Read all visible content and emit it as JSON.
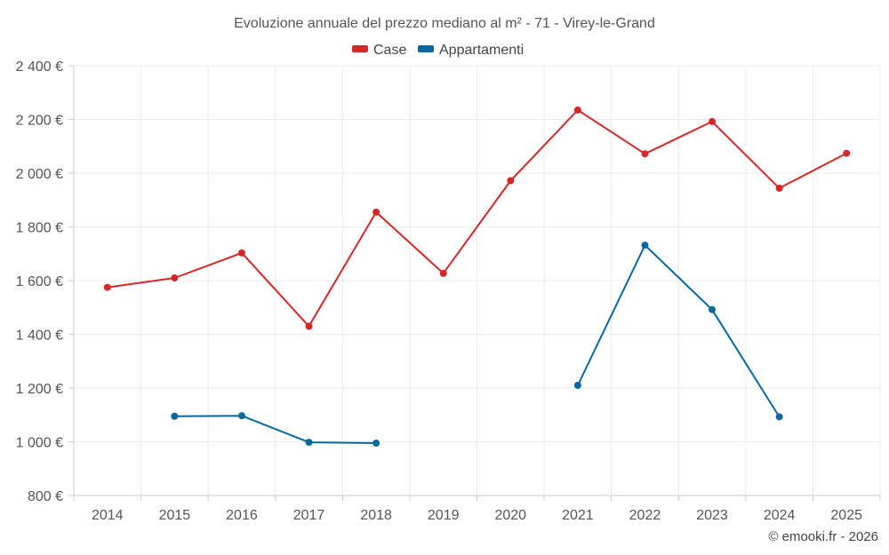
{
  "chart_data": {
    "type": "line",
    "title": "Evoluzione annuale del prezzo mediano al m² - 71 - Virey-le-Grand",
    "categories": [
      "2014",
      "2015",
      "2016",
      "2017",
      "2018",
      "2019",
      "2020",
      "2021",
      "2022",
      "2023",
      "2024",
      "2025"
    ],
    "ylim": [
      800,
      2400
    ],
    "yticks": [
      800,
      1000,
      1200,
      1400,
      1600,
      1800,
      2000,
      2200,
      2400
    ],
    "ytick_labels": [
      "800 €",
      "1 000 €",
      "1 200 €",
      "1 400 €",
      "1 600 €",
      "1 800 €",
      "2 000 €",
      "2 200 €",
      "2 400 €"
    ],
    "grid": true,
    "legend_position": "top-center",
    "series": [
      {
        "name": "Case",
        "color": "#d62728",
        "values": [
          1575,
          1610,
          1703,
          1430,
          1855,
          1627,
          1972,
          2235,
          2072,
          2192,
          1944,
          2074
        ]
      },
      {
        "name": "Appartamenti",
        "color": "#0868a0",
        "values": [
          null,
          1095,
          1097,
          998,
          995,
          null,
          null,
          1210,
          1732,
          1492,
          1093,
          null
        ]
      }
    ]
  },
  "credit": "© emooki.fr - 2026"
}
